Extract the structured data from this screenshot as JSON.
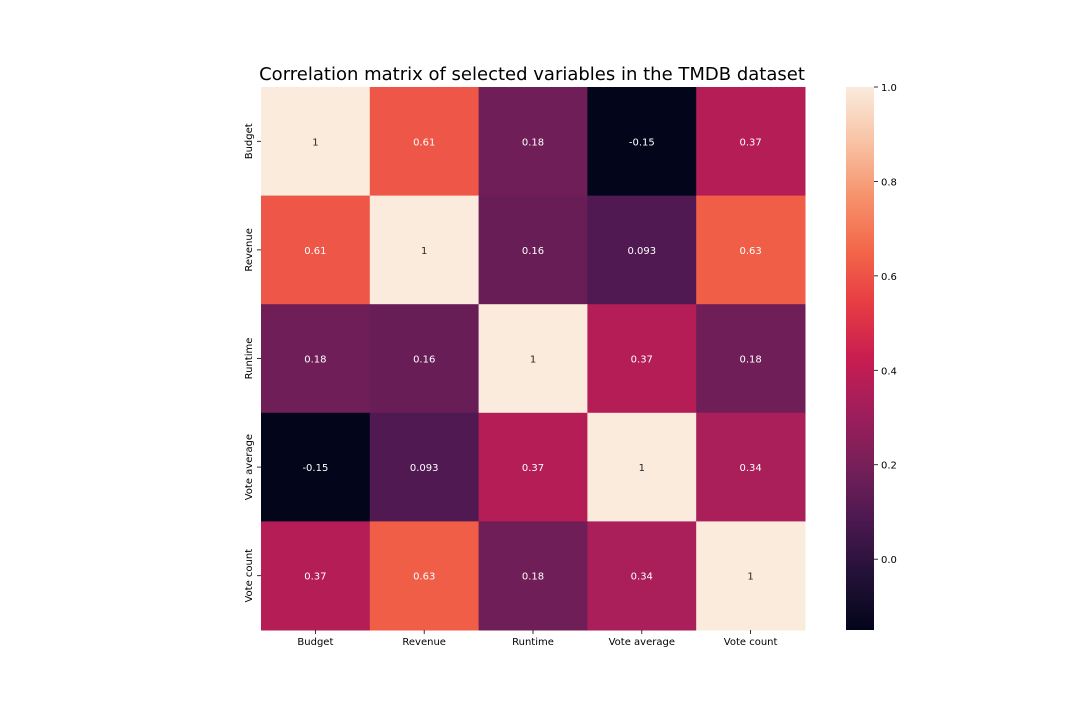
{
  "chart_data": {
    "type": "heatmap",
    "title": "Correlation matrix of selected variables in the TMDB dataset",
    "x_labels": [
      "Budget",
      "Revenue",
      "Runtime",
      "Vote average",
      "Vote count"
    ],
    "y_labels": [
      "Budget",
      "Revenue",
      "Runtime",
      "Vote average",
      "Vote count"
    ],
    "values": [
      [
        1,
        0.61,
        0.18,
        -0.15,
        0.37
      ],
      [
        0.61,
        1,
        0.16,
        0.093,
        0.63
      ],
      [
        0.18,
        0.16,
        1,
        0.37,
        0.18
      ],
      [
        -0.15,
        0.093,
        0.37,
        1,
        0.34
      ],
      [
        0.37,
        0.63,
        0.18,
        0.34,
        1
      ]
    ],
    "cell_labels": [
      [
        "1",
        "0.61",
        "0.18",
        "-0.15",
        "0.37"
      ],
      [
        "0.61",
        "1",
        "0.16",
        "0.093",
        "0.63"
      ],
      [
        "0.18",
        "0.16",
        "1",
        "0.37",
        "0.18"
      ],
      [
        "-0.15",
        "0.093",
        "0.37",
        "1",
        "0.34"
      ],
      [
        "0.37",
        "0.63",
        "0.18",
        "0.34",
        "1"
      ]
    ],
    "colorbar": {
      "range": [
        -0.15,
        1.0
      ],
      "ticks": [
        0.0,
        0.2,
        0.4,
        0.6,
        0.8,
        1.0
      ],
      "tick_labels": [
        "0.0",
        "0.2",
        "0.4",
        "0.6",
        "0.8",
        "1.0"
      ],
      "colormap": "rocket"
    }
  }
}
